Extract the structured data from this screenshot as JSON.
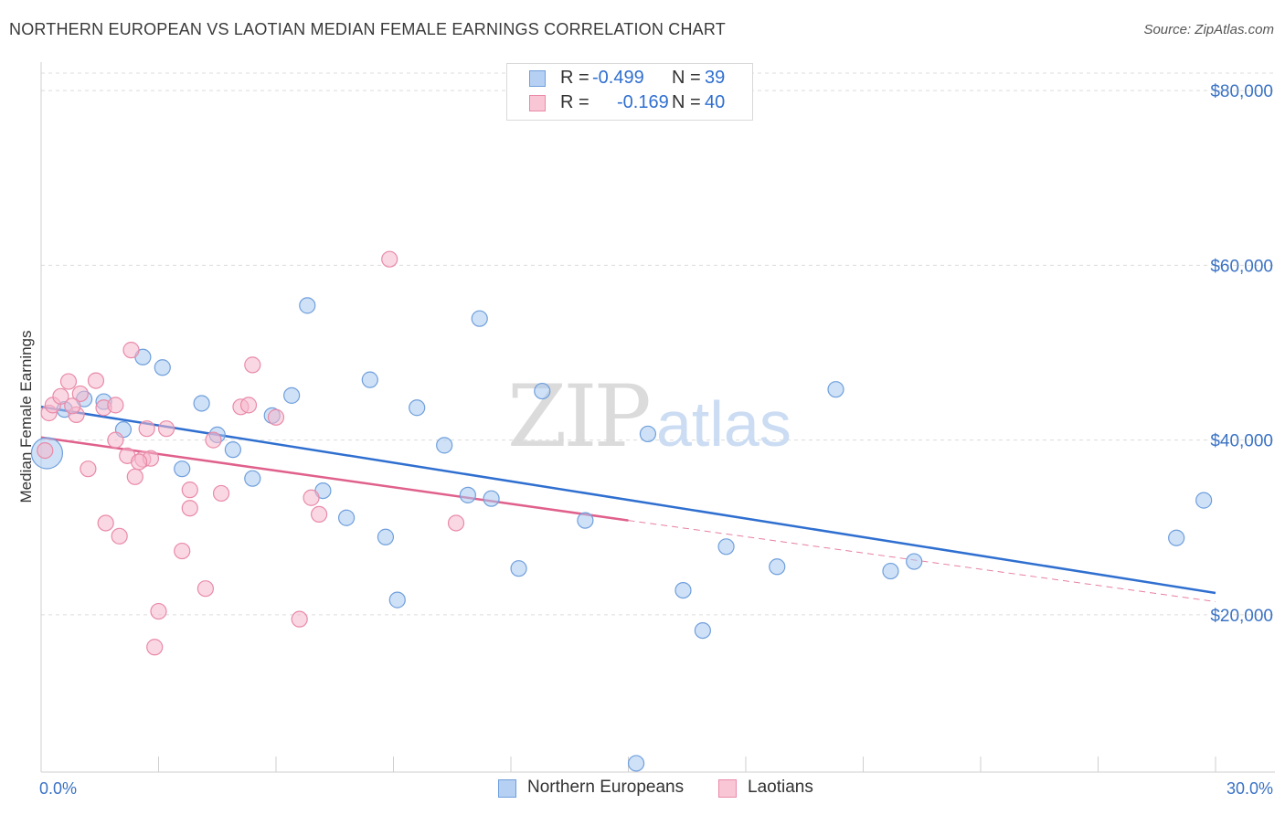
{
  "title": "NORTHERN EUROPEAN VS LAOTIAN MEDIAN FEMALE EARNINGS CORRELATION CHART",
  "source": "Source: ZipAtlas.com",
  "watermark": {
    "zip": "ZIP",
    "atlas": "atlas"
  },
  "legend": {
    "rows": [
      {
        "r_label": "R =",
        "r_value": "-0.499",
        "n_label": "N =",
        "n_value": "39"
      },
      {
        "r_label": "R =",
        "r_value": "-0.169",
        "n_label": "N =",
        "n_value": "40"
      }
    ]
  },
  "bottom_legend": {
    "series1": "Northern Europeans",
    "series2": "Laotians"
  },
  "colors": {
    "blue_fill": "#a8c8f0",
    "blue_stroke": "#6f9fdc",
    "blue_line": "#2f6fd0",
    "pink_fill": "#f6b8cc",
    "pink_stroke": "#e98aa8",
    "pink_line": "#e0608c",
    "grid": "#dcdcdc",
    "tick_text": "#3a72c4"
  },
  "chart_data": {
    "type": "scatter",
    "title": "NORTHERN EUROPEAN VS LAOTIAN MEDIAN FEMALE EARNINGS CORRELATION CHART",
    "xlabel": "",
    "ylabel": "Median Female Earnings",
    "xlim": [
      0,
      30
    ],
    "ylim": [
      2000,
      82000
    ],
    "x_tick_labels": [
      {
        "value": 0,
        "label": "0.0%"
      },
      {
        "value": 30,
        "label": "30.0%"
      }
    ],
    "y_ticks": [
      {
        "value": 20000,
        "label": "$20,000"
      },
      {
        "value": 40000,
        "label": "$40,000"
      },
      {
        "value": 60000,
        "label": "$60,000"
      },
      {
        "value": 80000,
        "label": "$80,000"
      }
    ],
    "series": [
      {
        "name": "Northern Europeans",
        "color_key": "blue",
        "points": [
          [
            0.15,
            38500,
            "large"
          ],
          [
            0.6,
            43500
          ],
          [
            1.1,
            44700
          ],
          [
            1.6,
            44400
          ],
          [
            2.1,
            41200
          ],
          [
            2.6,
            49500
          ],
          [
            3.1,
            48300
          ],
          [
            3.6,
            36700
          ],
          [
            4.1,
            44200
          ],
          [
            4.5,
            40600
          ],
          [
            4.9,
            38900
          ],
          [
            5.4,
            35600
          ],
          [
            5.9,
            42800
          ],
          [
            6.4,
            45100
          ],
          [
            6.8,
            55400
          ],
          [
            7.2,
            34200
          ],
          [
            7.8,
            31100
          ],
          [
            8.4,
            46900
          ],
          [
            8.8,
            28900
          ],
          [
            9.1,
            21700
          ],
          [
            9.6,
            43700
          ],
          [
            10.3,
            39400
          ],
          [
            10.9,
            33700
          ],
          [
            11.2,
            53900
          ],
          [
            11.5,
            33300
          ],
          [
            12.2,
            25300
          ],
          [
            12.8,
            45600
          ],
          [
            13.9,
            30800
          ],
          [
            15.2,
            3000
          ],
          [
            15.5,
            40700
          ],
          [
            16.4,
            22800
          ],
          [
            16.9,
            18200
          ],
          [
            17.5,
            27800
          ],
          [
            18.8,
            25500
          ],
          [
            20.3,
            45800
          ],
          [
            21.7,
            25000
          ],
          [
            22.3,
            26100
          ],
          [
            29.0,
            28800
          ],
          [
            29.7,
            33100
          ]
        ],
        "trend": {
          "x": [
            0,
            30
          ],
          "y": [
            43800,
            22500
          ],
          "dashed": false
        }
      },
      {
        "name": "Laotians",
        "color_key": "pink",
        "points": [
          [
            0.1,
            38800
          ],
          [
            0.2,
            43100
          ],
          [
            0.3,
            44000
          ],
          [
            0.5,
            45000
          ],
          [
            0.7,
            46700
          ],
          [
            0.9,
            42900
          ],
          [
            1.0,
            45300
          ],
          [
            1.2,
            36700
          ],
          [
            1.4,
            46800
          ],
          [
            1.6,
            43700
          ],
          [
            1.65,
            30500
          ],
          [
            1.9,
            44000
          ],
          [
            1.9,
            40000
          ],
          [
            2.0,
            29000
          ],
          [
            2.2,
            38200
          ],
          [
            2.3,
            50300
          ],
          [
            2.4,
            35800
          ],
          [
            2.6,
            37800
          ],
          [
            2.7,
            41300
          ],
          [
            2.8,
            37900
          ],
          [
            2.9,
            16300
          ],
          [
            3.0,
            20400
          ],
          [
            3.2,
            41300
          ],
          [
            3.6,
            27300
          ],
          [
            3.8,
            34300
          ],
          [
            3.8,
            32200
          ],
          [
            4.2,
            23000
          ],
          [
            4.4,
            40000
          ],
          [
            4.6,
            33900
          ],
          [
            5.1,
            43800
          ],
          [
            5.3,
            44000
          ],
          [
            5.4,
            48600
          ],
          [
            6.0,
            42600
          ],
          [
            6.6,
            19500
          ],
          [
            6.9,
            33400
          ],
          [
            7.1,
            31500
          ],
          [
            8.9,
            60700
          ],
          [
            10.6,
            30500
          ],
          [
            2.5,
            37500
          ],
          [
            0.8,
            43900
          ]
        ],
        "trend": {
          "x": [
            0,
            15
          ],
          "y": [
            40300,
            30800
          ],
          "dashed": false
        },
        "trend_extension": {
          "x": [
            15,
            30
          ],
          "y": [
            30800,
            21500
          ],
          "dashed": true
        }
      }
    ]
  }
}
